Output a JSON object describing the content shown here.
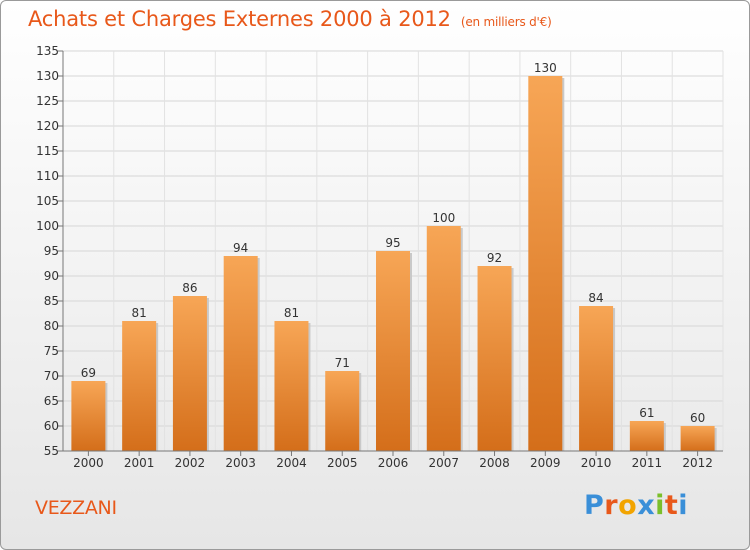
{
  "title": "Achats et Charges Externes 2000 à 2012",
  "unit": "(en milliers d'€)",
  "commune": "VEZZANI",
  "logo": {
    "letters": [
      "P",
      "r",
      "o",
      "x",
      "i",
      "t",
      "i"
    ],
    "colors": [
      "#3a8fd8",
      "#e8581a",
      "#f2a400",
      "#3a8fd8",
      "#7bbf2a",
      "#e8581a",
      "#3a8fd8"
    ]
  },
  "colors": {
    "bar_light": "#f7a656",
    "bar_dark": "#d46e1a",
    "title": "#e8581a"
  },
  "chart_data": {
    "type": "bar",
    "title": "Achats et Charges Externes 2000 à 2012",
    "subtitle": "(en milliers d'€)",
    "categories": [
      "2000",
      "2001",
      "2002",
      "2003",
      "2004",
      "2005",
      "2006",
      "2007",
      "2008",
      "2009",
      "2010",
      "2011",
      "2012"
    ],
    "values": [
      69,
      81,
      86,
      94,
      81,
      71,
      95,
      100,
      92,
      130,
      84,
      61,
      60
    ],
    "ylim": [
      55,
      135
    ],
    "yticks": [
      55,
      60,
      65,
      70,
      75,
      80,
      85,
      90,
      95,
      100,
      105,
      110,
      115,
      120,
      125,
      130,
      135
    ],
    "grid": true,
    "xlabel": "",
    "ylabel": ""
  }
}
